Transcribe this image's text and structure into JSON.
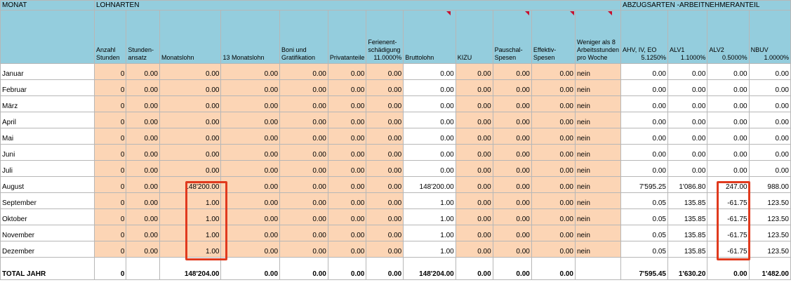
{
  "top_headers": {
    "monat": "MONAT",
    "lohnarten": "LOHNARTEN",
    "abzugsarten": "ABZUGSARTEN -ARBEITNEHMERANTEIL"
  },
  "columns": {
    "anzahl": "Anzahl Stunden",
    "ansatz": "Stunden-ansatz",
    "monatslohn": "Monatslohn",
    "dreizehn": "13 Monatslohn",
    "boni": "Boni und Gratifikation",
    "privat": "Privatanteile",
    "ferien": "Ferienent-schädigung",
    "ferien_pct": "11.0000%",
    "brutto": "Bruttolohn",
    "kizu": "KIZU",
    "pauschal": "Pauschal-Spesen",
    "effektiv": "Effektiv-Spesen",
    "weniger": "Weniger als 8 Arbeitsstunden pro Woche",
    "ahv": "AHV, IV, EO",
    "ahv_pct": "5.1250%",
    "alv1": "ALV1",
    "alv1_pct": "1.1000%",
    "alv2": "ALV2",
    "alv2_pct": "0.5000%",
    "nbuv": "NBUV",
    "nbuv_pct": "1.0000%"
  },
  "rows": [
    {
      "month": "Januar",
      "anzahl": "0",
      "ansatz": "0.00",
      "monatslohn": "0.00",
      "dreizehn": "0.00",
      "boni": "0.00",
      "privat": "0.00",
      "ferien": "0.00",
      "brutto": "0.00",
      "kizu": "0.00",
      "pauschal": "0.00",
      "effektiv": "0.00",
      "weniger": "nein",
      "ahv": "0.00",
      "alv1": "0.00",
      "alv2": "0.00",
      "nbuv": "0.00"
    },
    {
      "month": "Februar",
      "anzahl": "0",
      "ansatz": "0.00",
      "monatslohn": "0.00",
      "dreizehn": "0.00",
      "boni": "0.00",
      "privat": "0.00",
      "ferien": "0.00",
      "brutto": "0.00",
      "kizu": "0.00",
      "pauschal": "0.00",
      "effektiv": "0.00",
      "weniger": "nein",
      "ahv": "0.00",
      "alv1": "0.00",
      "alv2": "0.00",
      "nbuv": "0.00"
    },
    {
      "month": "März",
      "anzahl": "0",
      "ansatz": "0.00",
      "monatslohn": "0.00",
      "dreizehn": "0.00",
      "boni": "0.00",
      "privat": "0.00",
      "ferien": "0.00",
      "brutto": "0.00",
      "kizu": "0.00",
      "pauschal": "0.00",
      "effektiv": "0.00",
      "weniger": "nein",
      "ahv": "0.00",
      "alv1": "0.00",
      "alv2": "0.00",
      "nbuv": "0.00"
    },
    {
      "month": "April",
      "anzahl": "0",
      "ansatz": "0.00",
      "monatslohn": "0.00",
      "dreizehn": "0.00",
      "boni": "0.00",
      "privat": "0.00",
      "ferien": "0.00",
      "brutto": "0.00",
      "kizu": "0.00",
      "pauschal": "0.00",
      "effektiv": "0.00",
      "weniger": "nein",
      "ahv": "0.00",
      "alv1": "0.00",
      "alv2": "0.00",
      "nbuv": "0.00"
    },
    {
      "month": "Mai",
      "anzahl": "0",
      "ansatz": "0.00",
      "monatslohn": "0.00",
      "dreizehn": "0.00",
      "boni": "0.00",
      "privat": "0.00",
      "ferien": "0.00",
      "brutto": "0.00",
      "kizu": "0.00",
      "pauschal": "0.00",
      "effektiv": "0.00",
      "weniger": "nein",
      "ahv": "0.00",
      "alv1": "0.00",
      "alv2": "0.00",
      "nbuv": "0.00"
    },
    {
      "month": "Juni",
      "anzahl": "0",
      "ansatz": "0.00",
      "monatslohn": "0.00",
      "dreizehn": "0.00",
      "boni": "0.00",
      "privat": "0.00",
      "ferien": "0.00",
      "brutto": "0.00",
      "kizu": "0.00",
      "pauschal": "0.00",
      "effektiv": "0.00",
      "weniger": "nein",
      "ahv": "0.00",
      "alv1": "0.00",
      "alv2": "0.00",
      "nbuv": "0.00"
    },
    {
      "month": "Juli",
      "anzahl": "0",
      "ansatz": "0.00",
      "monatslohn": "0.00",
      "dreizehn": "0.00",
      "boni": "0.00",
      "privat": "0.00",
      "ferien": "0.00",
      "brutto": "0.00",
      "kizu": "0.00",
      "pauschal": "0.00",
      "effektiv": "0.00",
      "weniger": "nein",
      "ahv": "0.00",
      "alv1": "0.00",
      "alv2": "0.00",
      "nbuv": "0.00"
    },
    {
      "month": "August",
      "anzahl": "0",
      "ansatz": "0.00",
      "monatslohn": "148'200.00",
      "dreizehn": "0.00",
      "boni": "0.00",
      "privat": "0.00",
      "ferien": "0.00",
      "brutto": "148'200.00",
      "kizu": "0.00",
      "pauschal": "0.00",
      "effektiv": "0.00",
      "weniger": "nein",
      "ahv": "7'595.25",
      "alv1": "1'086.80",
      "alv2": "247.00",
      "nbuv": "988.00"
    },
    {
      "month": "September",
      "anzahl": "0",
      "ansatz": "0.00",
      "monatslohn": "1.00",
      "dreizehn": "0.00",
      "boni": "0.00",
      "privat": "0.00",
      "ferien": "0.00",
      "brutto": "1.00",
      "kizu": "0.00",
      "pauschal": "0.00",
      "effektiv": "0.00",
      "weniger": "nein",
      "ahv": "0.05",
      "alv1": "135.85",
      "alv2": "-61.75",
      "nbuv": "123.50"
    },
    {
      "month": "Oktober",
      "anzahl": "0",
      "ansatz": "0.00",
      "monatslohn": "1.00",
      "dreizehn": "0.00",
      "boni": "0.00",
      "privat": "0.00",
      "ferien": "0.00",
      "brutto": "1.00",
      "kizu": "0.00",
      "pauschal": "0.00",
      "effektiv": "0.00",
      "weniger": "nein",
      "ahv": "0.05",
      "alv1": "135.85",
      "alv2": "-61.75",
      "nbuv": "123.50"
    },
    {
      "month": "November",
      "anzahl": "0",
      "ansatz": "0.00",
      "monatslohn": "1.00",
      "dreizehn": "0.00",
      "boni": "0.00",
      "privat": "0.00",
      "ferien": "0.00",
      "brutto": "1.00",
      "kizu": "0.00",
      "pauschal": "0.00",
      "effektiv": "0.00",
      "weniger": "nein",
      "ahv": "0.05",
      "alv1": "135.85",
      "alv2": "-61.75",
      "nbuv": "123.50"
    },
    {
      "month": "Dezember",
      "anzahl": "0",
      "ansatz": "0.00",
      "monatslohn": "1.00",
      "dreizehn": "0.00",
      "boni": "0.00",
      "privat": "0.00",
      "ferien": "0.00",
      "brutto": "1.00",
      "kizu": "0.00",
      "pauschal": "0.00",
      "effektiv": "0.00",
      "weniger": "nein",
      "ahv": "0.05",
      "alv1": "135.85",
      "alv2": "-61.75",
      "nbuv": "123.50"
    }
  ],
  "total": {
    "label": "TOTAL JAHR",
    "anzahl": "0",
    "monatslohn": "148'204.00",
    "dreizehn": "0.00",
    "boni": "0.00",
    "privat": "0.00",
    "ferien": "0.00",
    "brutto": "148'204.00",
    "kizu": "0.00",
    "pauschal": "0.00",
    "effektiv": "0.00",
    "ahv": "7'595.45",
    "alv1": "1'630.20",
    "alv2": "0.00",
    "nbuv": "1'482.00"
  },
  "colors": {
    "header": "#94cddd",
    "input": "#fcd5b5",
    "highlight": "#e03a1e"
  }
}
